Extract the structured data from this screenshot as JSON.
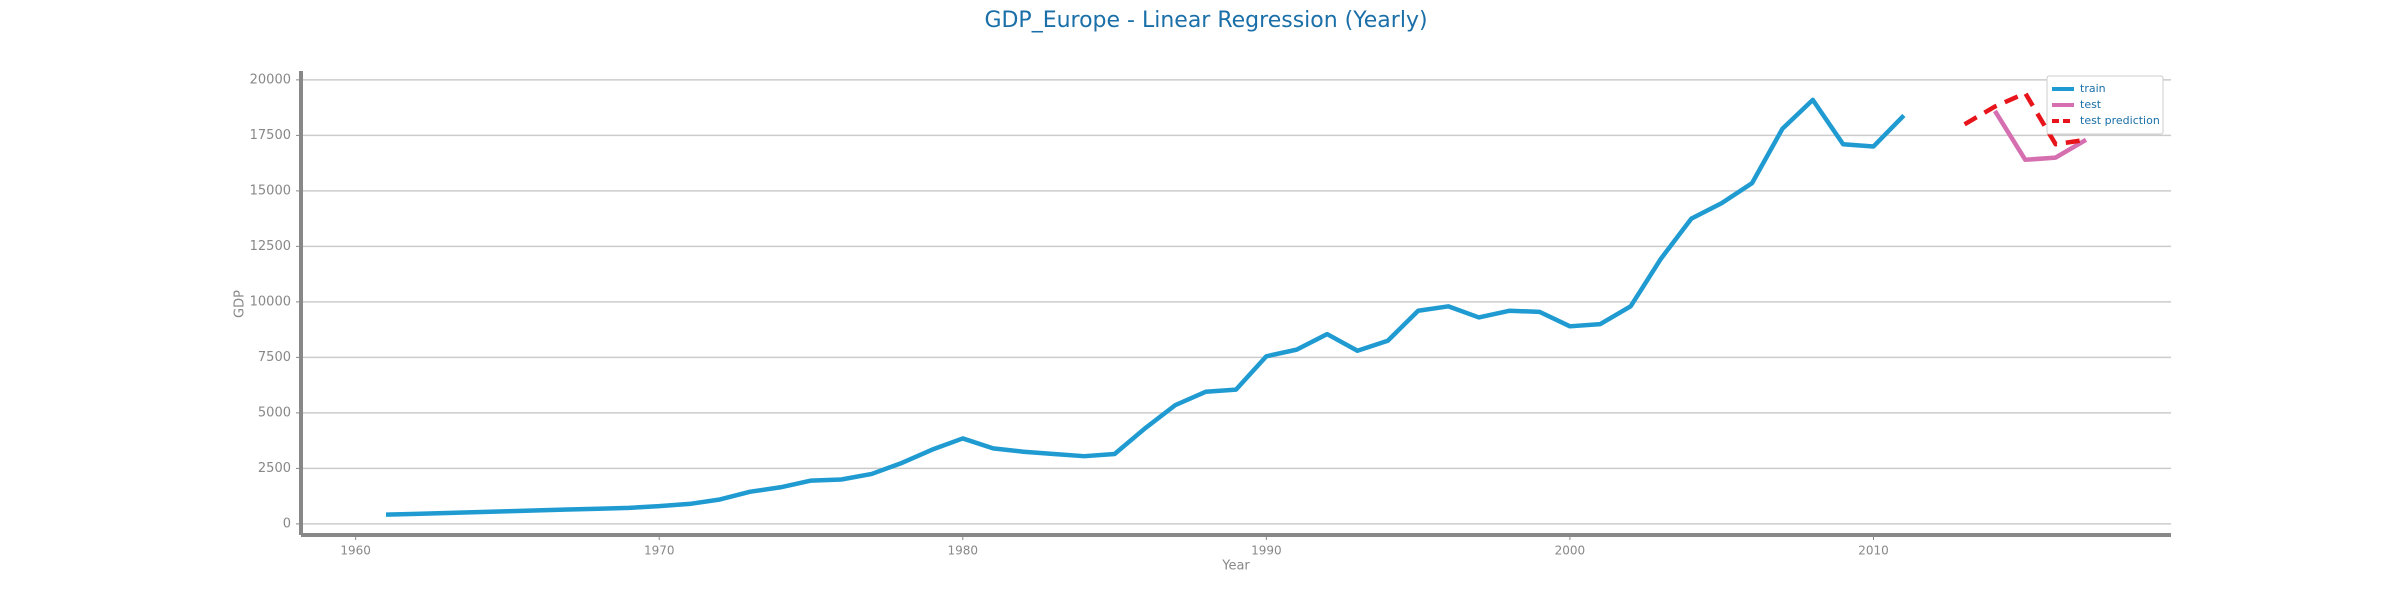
{
  "chart_data": {
    "type": "line",
    "title": "GDP_Europe - Linear Regression (Yearly)",
    "xlabel": "Year",
    "ylabel": "GDP",
    "xlim": [
      1958.2,
      2019.8
    ],
    "xticks": [
      1960,
      1970,
      1980,
      1990,
      2000,
      2010
    ],
    "ylim": [
      -500,
      20400
    ],
    "yticks": [
      0,
      2500,
      5000,
      7500,
      10000,
      12500,
      15000,
      17500,
      20000
    ],
    "grid": true,
    "legend": "upper right",
    "series": [
      {
        "name": "train",
        "color": "#1f9bd1",
        "dash": false,
        "x": [
          1961,
          1962,
          1963,
          1964,
          1965,
          1966,
          1967,
          1968,
          1969,
          1970,
          1971,
          1972,
          1973,
          1974,
          1975,
          1976,
          1977,
          1978,
          1979,
          1980,
          1981,
          1982,
          1983,
          1984,
          1985,
          1986,
          1987,
          1988,
          1989,
          1990,
          1991,
          1992,
          1993,
          1994,
          1995,
          1996,
          1997,
          1998,
          1999,
          2000,
          2001,
          2002,
          2003,
          2004,
          2005,
          2006,
          2007,
          2008,
          2009,
          2010,
          2011
        ],
        "values": [
          420,
          450,
          490,
          530,
          570,
          610,
          650,
          680,
          720,
          800,
          900,
          1100,
          1450,
          1650,
          1950,
          2000,
          2250,
          2750,
          3350,
          3850,
          3400,
          3250,
          3150,
          3050,
          3150,
          4300,
          5350,
          5950,
          6050,
          7550,
          7850,
          8550,
          7800,
          8250,
          9600,
          9800,
          9300,
          9600,
          9550,
          8900,
          9000,
          9800,
          11950,
          13750,
          14450,
          15350,
          17800,
          19100,
          17100,
          17000,
          18400
        ]
      },
      {
        "name": "test",
        "color": "#d56fb0",
        "dash": false,
        "x": [
          2014,
          2015,
          2016,
          2017
        ],
        "values": [
          18600,
          16400,
          16500,
          17300
        ]
      },
      {
        "name": "test prediction",
        "color": "#e8141c",
        "dash": true,
        "x": [
          2013,
          2014,
          2015,
          2016,
          2017
        ],
        "values": [
          18000,
          18800,
          19400,
          17100,
          17300
        ]
      }
    ]
  }
}
